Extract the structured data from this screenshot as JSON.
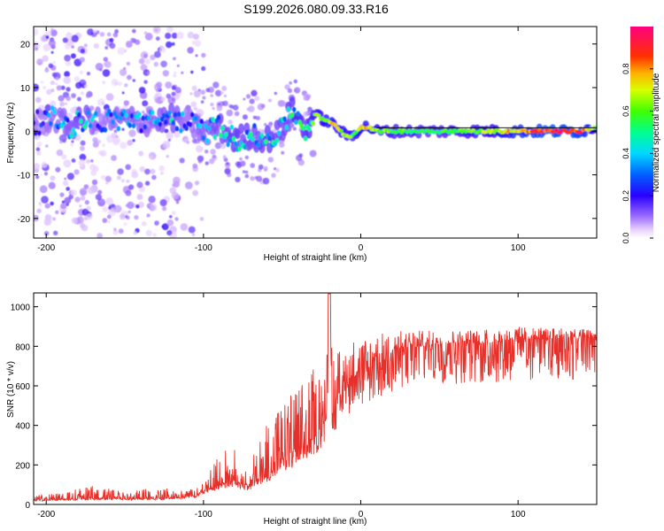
{
  "figure": {
    "title": "S199.2026.080.09.33.R16"
  },
  "chart_data": [
    {
      "type": "heatmap",
      "title": "S199.2026.080.09.33.R16",
      "xlabel": "Height of straight line (km)",
      "ylabel": "Frequency (Hz)",
      "xlim": [
        -208,
        150
      ],
      "ylim": [
        -24.5,
        24
      ],
      "xticks": [
        -200,
        -100,
        0,
        100
      ],
      "xtick_labels": [
        "-200",
        "-100",
        "0",
        "100"
      ],
      "yticks": [
        -20,
        -10,
        0,
        10,
        20
      ],
      "ytick_labels": [
        "-20",
        "-10",
        "0",
        "10",
        "20"
      ],
      "colorbar": {
        "label": "Normalized spectral amplitude",
        "range": [
          0,
          1
        ],
        "ticks": [
          0.0,
          0.2,
          0.4,
          0.6,
          0.8
        ],
        "tick_labels": [
          "0.0",
          "0.2",
          "0.4",
          "0.6",
          "0.8"
        ],
        "colormap": "rainbow (white-violet-blue-cyan-green-yellow-red-magenta)"
      },
      "ridge": {
        "description": "peak frequency track of spectral amplitude vs height",
        "x": [
          -205,
          -195,
          -185,
          -175,
          -165,
          -150,
          -135,
          -120,
          -110,
          -100,
          -90,
          -80,
          -70,
          -60,
          -50,
          -45,
          -40,
          -35,
          -30,
          -25,
          -20,
          -15,
          -10,
          -5,
          0,
          5,
          10,
          20,
          40,
          60,
          80,
          100,
          120,
          140,
          150
        ],
        "freq": [
          2,
          3,
          1,
          3,
          2,
          3,
          2,
          3,
          2,
          0,
          1,
          -2,
          -1,
          -2,
          0,
          5,
          3,
          0,
          4,
          3,
          2,
          1,
          -1,
          -1,
          1,
          1,
          0,
          0,
          0,
          0,
          0,
          0,
          0,
          0,
          1
        ],
        "amplitude": [
          0.3,
          0.35,
          0.4,
          0.45,
          0.3,
          0.4,
          0.35,
          0.45,
          0.3,
          0.4,
          0.45,
          0.5,
          0.45,
          0.5,
          0.45,
          0.5,
          0.55,
          0.5,
          0.6,
          0.65,
          0.75,
          0.7,
          0.65,
          0.6,
          0.7,
          0.75,
          0.65,
          0.6,
          0.55,
          0.6,
          0.65,
          0.8,
          0.95,
          0.9,
          0.6
        ]
      }
    },
    {
      "type": "line",
      "title": "",
      "xlabel": "Height of straight line (km)",
      "ylabel": "SNR (10 * v/v)",
      "xlim": [
        -208,
        150
      ],
      "ylim": [
        0,
        1070
      ],
      "xticks": [
        -200,
        -100,
        0,
        100
      ],
      "xtick_labels": [
        "-200",
        "-100",
        "0",
        "100"
      ],
      "yticks": [
        0,
        200,
        400,
        600,
        800,
        1000
      ],
      "ytick_labels": [
        "0",
        "200",
        "400",
        "600",
        "800",
        "1000"
      ],
      "series": [
        {
          "name": "SNR",
          "color": "#e8302a",
          "x": [
            -208,
            -190,
            -170,
            -150,
            -130,
            -115,
            -105,
            -100,
            -95,
            -90,
            -85,
            -80,
            -75,
            -70,
            -65,
            -60,
            -55,
            -50,
            -45,
            -40,
            -35,
            -30,
            -25,
            -22,
            -20,
            -18,
            -15,
            -12,
            -10,
            -8,
            -5,
            0,
            5,
            10,
            15,
            20,
            25,
            30,
            40,
            60,
            80,
            100,
            120,
            140,
            150
          ],
          "values": [
            20,
            25,
            30,
            28,
            30,
            35,
            45,
            70,
            80,
            100,
            110,
            120,
            100,
            90,
            130,
            150,
            180,
            220,
            230,
            260,
            300,
            330,
            380,
            430,
            1065,
            480,
            520,
            580,
            640,
            600,
            650,
            640,
            690,
            700,
            730,
            760,
            780,
            790,
            800,
            810,
            815,
            830,
            840,
            845,
            850
          ],
          "envelope_max": [
            45,
            60,
            110,
            60,
            100,
            70,
            80,
            120,
            180,
            260,
            290,
            280,
            220,
            260,
            310,
            420,
            480,
            530,
            560,
            600,
            640,
            690,
            720,
            760,
            1065,
            770,
            780,
            800,
            820,
            830,
            835,
            840,
            850,
            860,
            870,
            870,
            880,
            880,
            880,
            880,
            890,
            900,
            895,
            890,
            880
          ]
        }
      ]
    }
  ]
}
